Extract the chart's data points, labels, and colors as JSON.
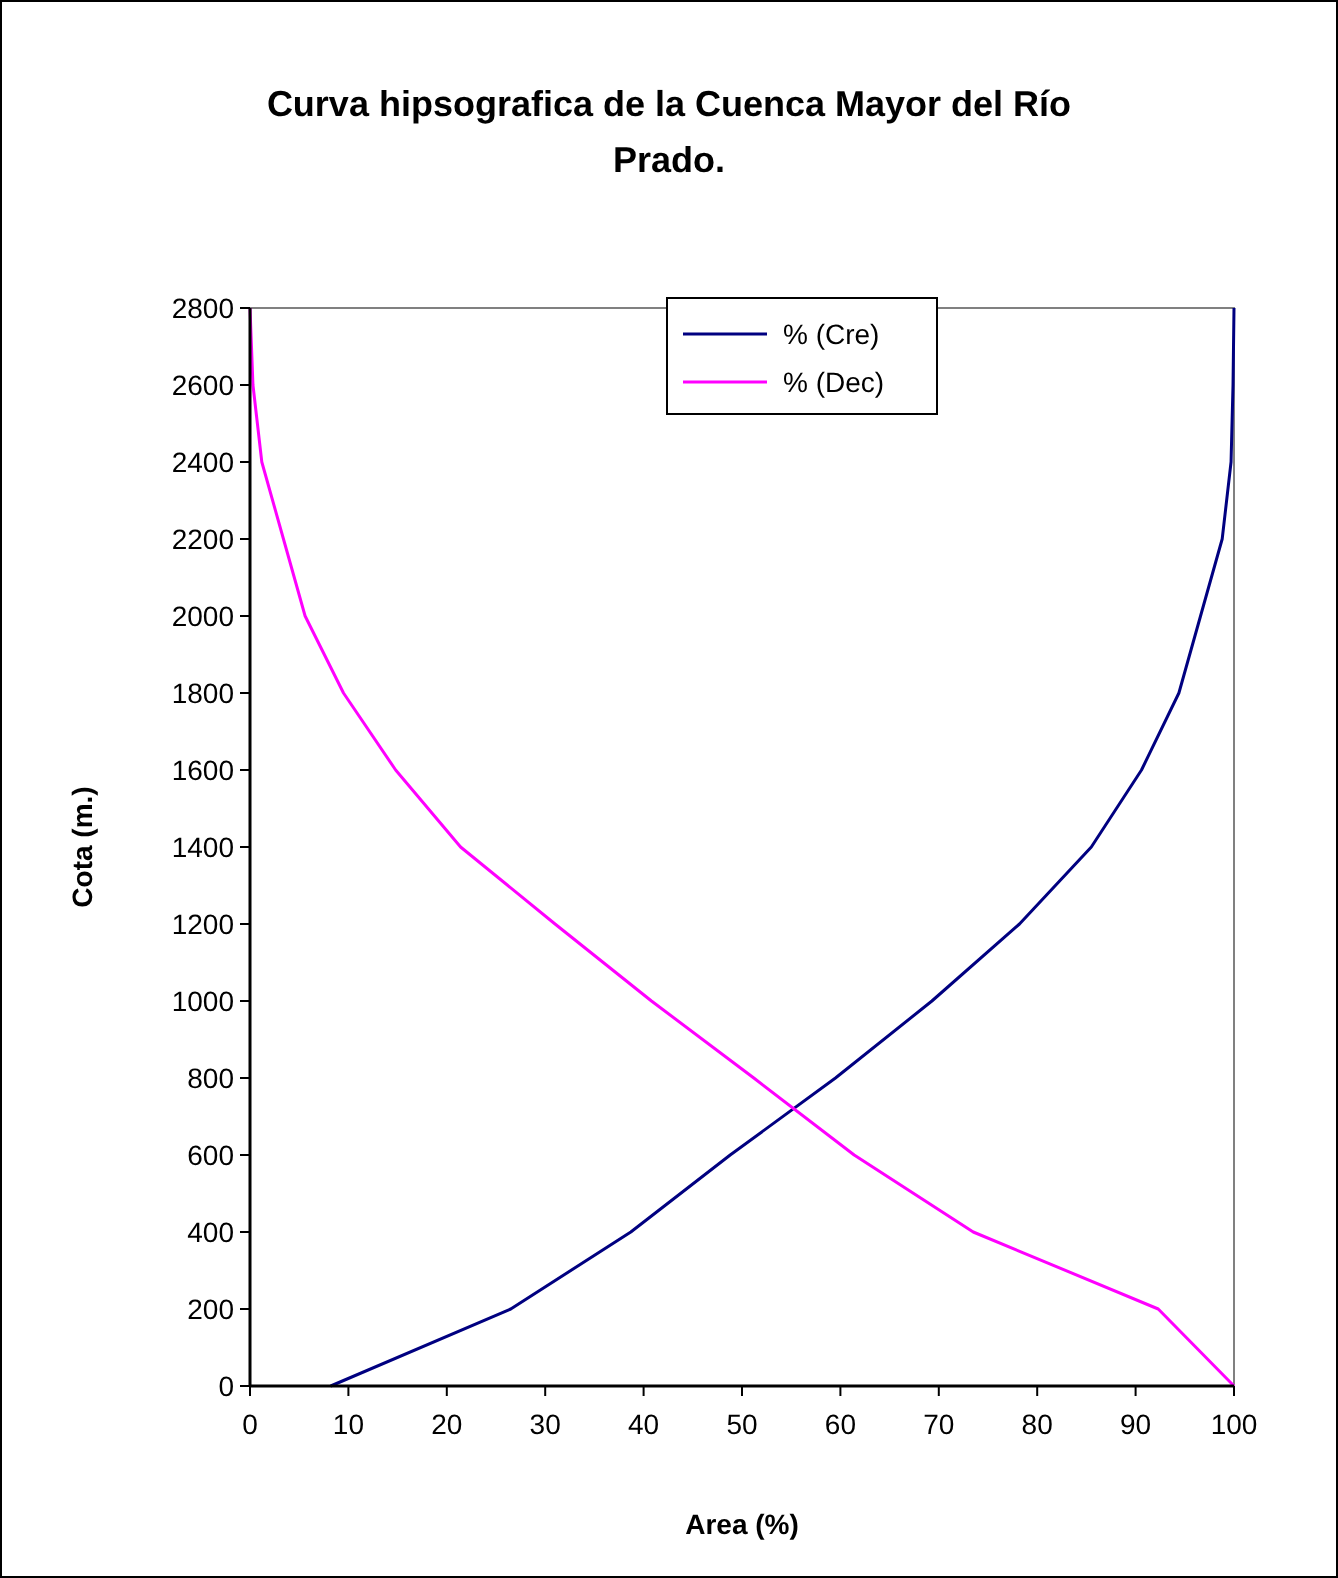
{
  "chart_data": {
    "type": "line",
    "title": "Curva hipsografica de la Cuenca Mayor del Río Prado.",
    "xlabel": "Area (%)",
    "ylabel": "Cota (m.)",
    "xlim": [
      0,
      100
    ],
    "xticks": [
      0,
      10,
      20,
      30,
      40,
      50,
      60,
      70,
      80,
      90,
      100
    ],
    "ylim": [
      0,
      2800
    ],
    "yticks": [
      0,
      200,
      400,
      600,
      800,
      1000,
      1200,
      1400,
      1600,
      1800,
      2000,
      2200,
      2400,
      2600,
      2800
    ],
    "grid": false,
    "legend": "top",
    "marker": "none",
    "line_style": "solid",
    "series": [
      {
        "name": "% (Cre)",
        "color": "#000080",
        "x": [
          8.2,
          26.5,
          38.7,
          48.8,
          59.5,
          69.3,
          78.2,
          85.5,
          90.6,
          94.4,
          96.6,
          98.8,
          99.7,
          99.9,
          100
        ],
        "values": [
          0,
          200,
          400,
          600,
          800,
          1000,
          1200,
          1400,
          1600,
          1800,
          2000,
          2200,
          2400,
          2600,
          2800
        ]
      },
      {
        "name": "% (Dec)",
        "color": "#ff00ff",
        "x": [
          100,
          92.3,
          73.5,
          61.4,
          51.2,
          40.8,
          31,
          21.4,
          14.8,
          9.5,
          5.6,
          3.4,
          1.2,
          0.3,
          0
        ],
        "values": [
          0,
          200,
          400,
          600,
          800,
          1000,
          1200,
          1400,
          1600,
          1800,
          2000,
          2200,
          2400,
          2600,
          2800
        ]
      }
    ]
  }
}
